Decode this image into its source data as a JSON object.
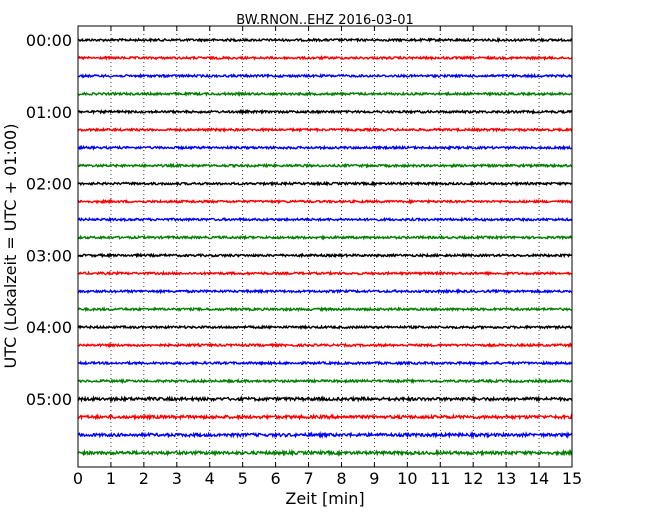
{
  "chart_data": {
    "type": "line",
    "title": "BW.RNON..EHZ 2016-03-01",
    "xlabel": "Zeit  [min]",
    "ylabel": "UTC (Lokalzeit = UTC + 01:00)",
    "xlim": [
      0,
      15
    ],
    "xticks": [
      "0",
      "1",
      "2",
      "3",
      "4",
      "5",
      "6",
      "7",
      "8",
      "9",
      "10",
      "11",
      "12",
      "13",
      "14",
      "15"
    ],
    "yticks": [
      "00:00",
      "01:00",
      "02:00",
      "03:00",
      "04:00",
      "05:00"
    ],
    "trace_interval_min": 15,
    "trace_count": 24,
    "colors": [
      "#000000",
      "#ff0000",
      "#0000ff",
      "#008000"
    ],
    "grid": "vertical-dotted"
  }
}
